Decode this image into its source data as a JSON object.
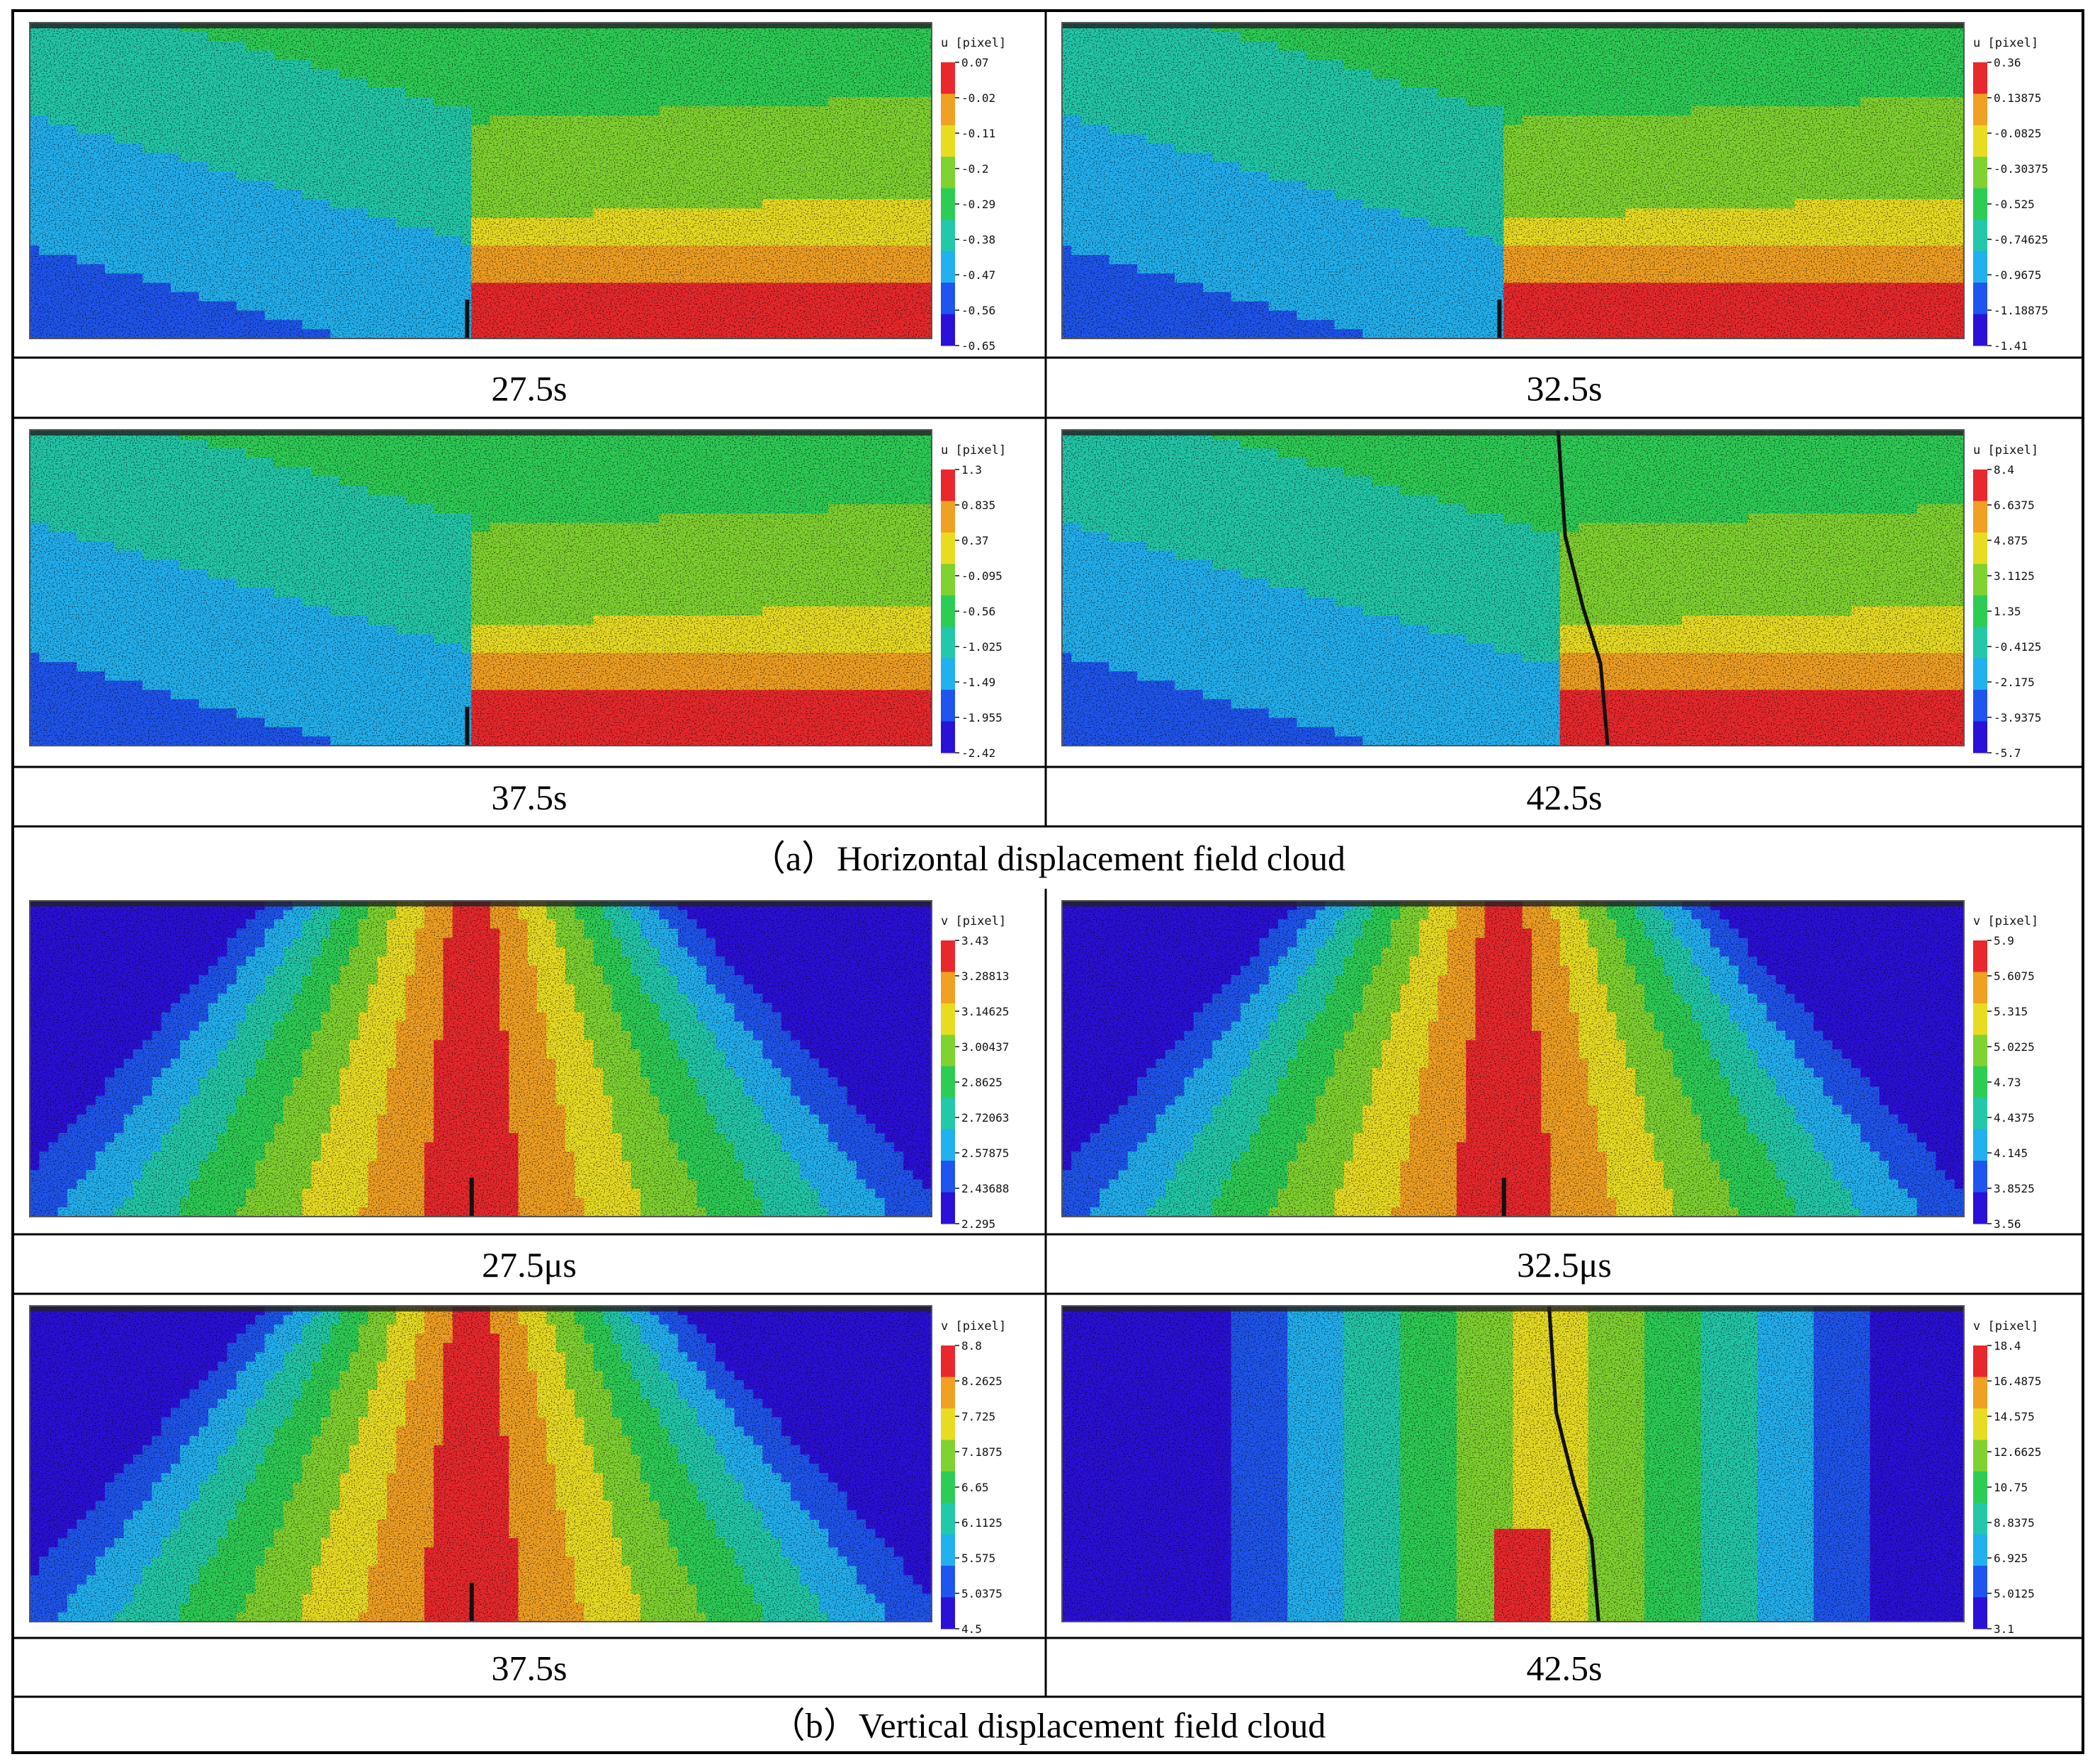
{
  "figure": {
    "panels": [
      {
        "quantity": "u",
        "unit_label": "u [pixel]",
        "time_label": "27.5s",
        "field": "horiz",
        "crack_x": 0.485,
        "crack_type": "tip",
        "legend_values": [
          "0.07",
          "-0.02",
          "-0.11",
          "-0.2",
          "-0.29",
          "-0.38",
          "-0.47",
          "-0.56",
          "-0.65"
        ]
      },
      {
        "quantity": "u",
        "unit_label": "u [pixel]",
        "time_label": "32.5s",
        "field": "horiz",
        "crack_x": 0.485,
        "crack_type": "tip",
        "legend_values": [
          "0.36",
          "0.13875",
          "-0.0825",
          "-0.30375",
          "-0.525",
          "-0.74625",
          "-0.9675",
          "-1.18875",
          "-1.41"
        ]
      },
      {
        "quantity": "u",
        "unit_label": "u [pixel]",
        "time_label": "37.5s",
        "field": "horiz",
        "crack_x": 0.485,
        "crack_type": "tip",
        "legend_values": [
          "1.3",
          "0.835",
          "0.37",
          "-0.095",
          "-0.56",
          "-1.025",
          "-1.49",
          "-1.955",
          "-2.42"
        ]
      },
      {
        "quantity": "u",
        "unit_label": "u [pixel]",
        "time_label": "42.5s",
        "field": "horiz",
        "crack_x": 0.55,
        "crack_type": "open",
        "legend_values": [
          "8.4",
          "6.6375",
          "4.875",
          "3.1125",
          "1.35",
          "-0.4125",
          "-2.175",
          "-3.9375",
          "-5.7"
        ]
      },
      {
        "quantity": "v",
        "unit_label": "v [pixel]",
        "time_label": "27.5μs",
        "field": "vert",
        "crack_x": 0.49,
        "crack_type": "tip",
        "legend_values": [
          "3.43",
          "3.28813",
          "3.14625",
          "3.00437",
          "2.8625",
          "2.72063",
          "2.57875",
          "2.43688",
          "2.295"
        ]
      },
      {
        "quantity": "v",
        "unit_label": "v [pixel]",
        "time_label": "32.5μs",
        "field": "vert",
        "crack_x": 0.49,
        "crack_type": "tip",
        "legend_values": [
          "5.9",
          "5.6075",
          "5.315",
          "5.0225",
          "4.73",
          "4.4375",
          "4.145",
          "3.8525",
          "3.56"
        ]
      },
      {
        "quantity": "v",
        "unit_label": "v [pixel]",
        "time_label": "37.5s",
        "field": "vert",
        "crack_x": 0.49,
        "crack_type": "tip",
        "legend_values": [
          "8.8",
          "8.2625",
          "7.725",
          "7.1875",
          "6.65",
          "6.1125",
          "5.575",
          "5.0375",
          "4.5"
        ]
      },
      {
        "quantity": "v",
        "unit_label": "v [pixel]",
        "time_label": "42.5s",
        "field": "vert2",
        "crack_x": 0.54,
        "crack_type": "open",
        "legend_values": [
          "18.4",
          "16.4875",
          "14.575",
          "12.6625",
          "10.75",
          "8.8375",
          "6.925",
          "5.0125",
          "3.1"
        ]
      }
    ],
    "section_captions": [
      "（a）Horizontal displacement field cloud",
      "（b）Vertical displacement field cloud"
    ],
    "colormap": [
      "#2b10d8",
      "#1f55ee",
      "#22b0ee",
      "#22c8a8",
      "#2dcc55",
      "#7fd230",
      "#e8dc22",
      "#f0a022",
      "#e8282c"
    ]
  }
}
